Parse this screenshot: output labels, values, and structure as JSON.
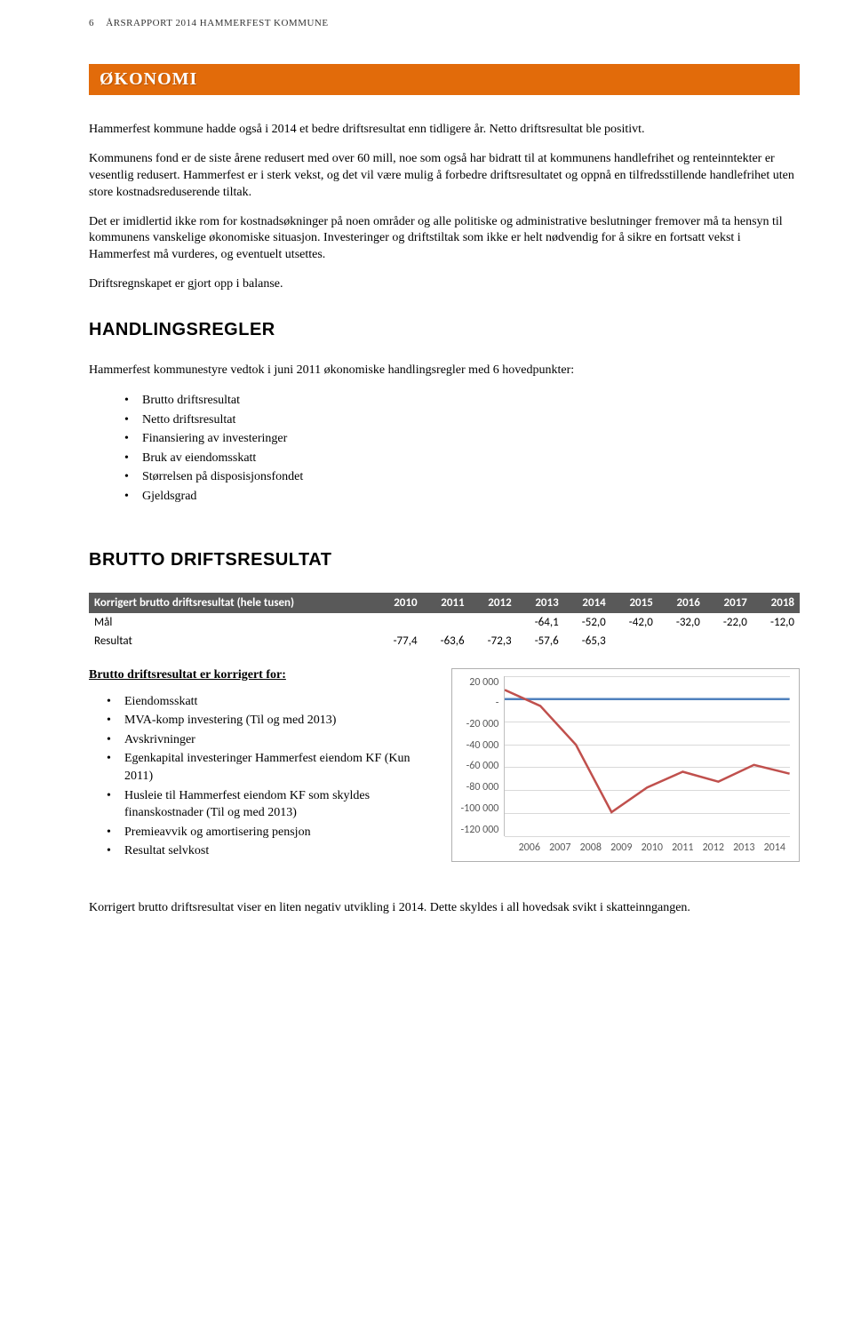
{
  "header": {
    "page_number": "6",
    "title": "ÅRSRAPPORT 2014 HAMMERFEST KOMMUNE"
  },
  "banner": {
    "title": "ØKONOMI",
    "bg_color": "#e26b0a",
    "text_color": "#ffffff"
  },
  "paragraphs": {
    "p1": "Hammerfest kommune hadde også i 2014 et bedre driftsresultat enn tidligere år. Netto driftsresultat ble positivt.",
    "p2": "Kommunens fond er de siste årene redusert med over 60 mill, noe som også har bidratt til at kommunens handlefrihet og renteinntekter er vesentlig redusert. Hammerfest er i sterk vekst, og det vil være mulig å forbedre driftsresultatet og oppnå en tilfredsstillende handlefrihet uten store kostnadsreduserende tiltak.",
    "p3": "Det er imidlertid ikke rom for kostnadsøkninger på noen områder og alle politiske og administrative beslutninger fremover må ta hensyn til kommunens vanskelige økonomiske situasjon. Investeringer og driftstiltak som ikke er helt nødvendig for å sikre en fortsatt vekst i Hammerfest må vurderes, og eventuelt utsettes.",
    "p4": "Driftsregnskapet er gjort opp i balanse.",
    "p5": "Hammerfest kommunestyre vedtok i juni 2011 økonomiske handlingsregler med 6 hovedpunkter:",
    "p6": "Korrigert brutto driftsresultat viser en liten negativ utvikling i 2014. Dette skyldes i all hovedsak svikt i skatteinngangen."
  },
  "headings": {
    "h1": "HANDLINGSREGLER",
    "h2": "BRUTTO DRIFTSRESULTAT",
    "sub1": "Brutto driftsresultat er korrigert for:"
  },
  "list1": {
    "items": [
      "Brutto driftsresultat",
      "Netto driftsresultat",
      "Finansiering av investeringer",
      "Bruk av eiendomsskatt",
      "Størrelsen på disposisjonsfondet",
      "Gjeldsgrad"
    ]
  },
  "list2": {
    "items": [
      "Eiendomsskatt",
      "MVA-komp investering (Til og med 2013)",
      "Avskrivninger",
      "Egenkapital investeringer Hammerfest eiendom KF (Kun 2011)",
      "Husleie til Hammerfest eiendom KF som skyldes finanskostnader (Til og med 2013)",
      "Premieavvik og amortisering pensjon",
      "Resultat selvkost"
    ]
  },
  "table": {
    "header_bg": "#595959",
    "header_color": "#ffffff",
    "columns": [
      "Korrigert brutto driftsresultat (hele tusen)",
      "2010",
      "2011",
      "2012",
      "2013",
      "2014",
      "2015",
      "2016",
      "2017",
      "2018"
    ],
    "rows": [
      [
        "Mål",
        "",
        "",
        "",
        "-64,1",
        "-52,0",
        "-42,0",
        "-32,0",
        "-22,0",
        "-12,0"
      ],
      [
        "Resultat",
        "-77,4",
        "-63,6",
        "-72,3",
        "-57,6",
        "-65,3",
        "",
        "",
        "",
        ""
      ]
    ]
  },
  "chart": {
    "type": "line",
    "background_color": "#ffffff",
    "border_color": "#b0b0b0",
    "grid_color": "#d9d9d9",
    "text_color": "#595959",
    "y_labels": [
      "20 000",
      "-",
      "-20 000",
      "-40 000",
      "-60 000",
      "-80 000",
      "-100 000",
      "-120 000"
    ],
    "ylim": [
      -120000,
      20000
    ],
    "ytick_step": 20000,
    "x_labels": [
      "2006",
      "2007",
      "2008",
      "2009",
      "2010",
      "2011",
      "2012",
      "2013",
      "2014"
    ],
    "series": [
      {
        "name": "blue",
        "color": "#4f81bd",
        "line_width": 2.5,
        "values": [
          0,
          0,
          0,
          0,
          0,
          0,
          0,
          0,
          0
        ]
      },
      {
        "name": "red",
        "color": "#c0504d",
        "line_width": 2.5,
        "values": [
          8000,
          -6000,
          -40000,
          -99000,
          -77400,
          -63600,
          -72300,
          -57600,
          -65300
        ]
      }
    ],
    "label_fontsize": 12
  }
}
